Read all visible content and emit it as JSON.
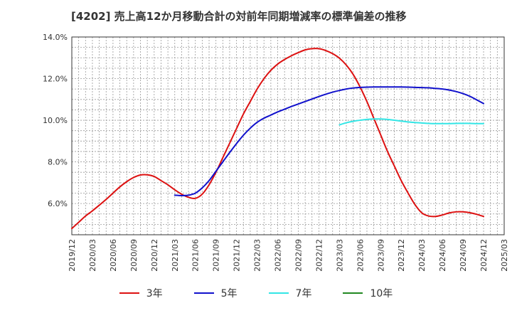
{
  "chart_data": {
    "type": "line",
    "title": "[4202]  売上高12か月移動合計の対前年同期増減率の標準偏差の推移",
    "xlabel": "",
    "ylabel": "",
    "ylim": [
      4.5,
      14.0
    ],
    "y_ticks": [
      6.0,
      8.0,
      10.0,
      12.0,
      14.0
    ],
    "y_tick_labels": [
      "6.0%",
      "8.0%",
      "10.0%",
      "12.0%",
      "14.0%"
    ],
    "x_range": [
      "2019-12",
      "2025-03"
    ],
    "x_tick_labels": [
      "2019/12",
      "2020/03",
      "2020/06",
      "2020/09",
      "2020/12",
      "2021/03",
      "2021/06",
      "2021/09",
      "2021/12",
      "2022/03",
      "2022/06",
      "2022/09",
      "2022/12",
      "2023/03",
      "2023/06",
      "2023/09",
      "2023/12",
      "2024/03",
      "2024/06",
      "2024/09",
      "2024/12",
      "2025/03"
    ],
    "grid": true,
    "legend_position": "bottom",
    "series": [
      {
        "name": "3年",
        "color": "#dd1111",
        "points": [
          [
            "2019-12",
            4.8
          ],
          [
            "2020-01",
            5.1
          ],
          [
            "2020-02",
            5.4
          ],
          [
            "2020-03",
            5.65
          ],
          [
            "2020-04",
            5.92
          ],
          [
            "2020-05",
            6.2
          ],
          [
            "2020-06",
            6.5
          ],
          [
            "2020-07",
            6.8
          ],
          [
            "2020-08",
            7.05
          ],
          [
            "2020-09",
            7.25
          ],
          [
            "2020-10",
            7.37
          ],
          [
            "2020-11",
            7.38
          ],
          [
            "2020-12",
            7.3
          ],
          [
            "2021-01",
            7.1
          ],
          [
            "2021-02",
            6.9
          ],
          [
            "2021-03",
            6.66
          ],
          [
            "2021-04",
            6.45
          ],
          [
            "2021-05",
            6.3
          ],
          [
            "2021-06",
            6.25
          ],
          [
            "2021-07",
            6.45
          ],
          [
            "2021-08",
            6.9
          ],
          [
            "2021-09",
            7.5
          ],
          [
            "2021-10",
            8.2
          ],
          [
            "2021-11",
            8.9
          ],
          [
            "2021-12",
            9.6
          ],
          [
            "2022-01",
            10.3
          ],
          [
            "2022-02",
            10.9
          ],
          [
            "2022-03",
            11.5
          ],
          [
            "2022-04",
            12.0
          ],
          [
            "2022-05",
            12.4
          ],
          [
            "2022-06",
            12.7
          ],
          [
            "2022-07",
            12.92
          ],
          [
            "2022-08",
            13.1
          ],
          [
            "2022-09",
            13.25
          ],
          [
            "2022-10",
            13.38
          ],
          [
            "2022-11",
            13.44
          ],
          [
            "2022-12",
            13.44
          ],
          [
            "2023-01",
            13.35
          ],
          [
            "2023-02",
            13.2
          ],
          [
            "2023-03",
            12.98
          ],
          [
            "2023-04",
            12.65
          ],
          [
            "2023-05",
            12.2
          ],
          [
            "2023-06",
            11.6
          ],
          [
            "2023-07",
            10.9
          ],
          [
            "2023-08",
            10.1
          ],
          [
            "2023-09",
            9.3
          ],
          [
            "2023-10",
            8.5
          ],
          [
            "2023-11",
            7.8
          ],
          [
            "2023-12",
            7.1
          ],
          [
            "2024-01",
            6.5
          ],
          [
            "2024-02",
            5.95
          ],
          [
            "2024-03",
            5.55
          ],
          [
            "2024-04",
            5.4
          ],
          [
            "2024-05",
            5.38
          ],
          [
            "2024-06",
            5.45
          ],
          [
            "2024-07",
            5.55
          ],
          [
            "2024-08",
            5.6
          ],
          [
            "2024-09",
            5.6
          ],
          [
            "2024-10",
            5.56
          ],
          [
            "2024-11",
            5.48
          ],
          [
            "2024-12",
            5.38
          ]
        ]
      },
      {
        "name": "5年",
        "color": "#1111cc",
        "points": [
          [
            "2021-03",
            6.4
          ],
          [
            "2021-04",
            6.38
          ],
          [
            "2021-05",
            6.4
          ],
          [
            "2021-06",
            6.5
          ],
          [
            "2021-07",
            6.75
          ],
          [
            "2021-08",
            7.1
          ],
          [
            "2021-09",
            7.55
          ],
          [
            "2021-10",
            8.0
          ],
          [
            "2021-11",
            8.45
          ],
          [
            "2021-12",
            8.88
          ],
          [
            "2022-01",
            9.28
          ],
          [
            "2022-02",
            9.62
          ],
          [
            "2022-03",
            9.9
          ],
          [
            "2022-04",
            10.1
          ],
          [
            "2022-05",
            10.25
          ],
          [
            "2022-06",
            10.4
          ],
          [
            "2022-07",
            10.53
          ],
          [
            "2022-08",
            10.66
          ],
          [
            "2022-09",
            10.78
          ],
          [
            "2022-10",
            10.9
          ],
          [
            "2022-11",
            11.02
          ],
          [
            "2022-12",
            11.14
          ],
          [
            "2023-01",
            11.25
          ],
          [
            "2023-02",
            11.35
          ],
          [
            "2023-03",
            11.43
          ],
          [
            "2023-04",
            11.5
          ],
          [
            "2023-05",
            11.55
          ],
          [
            "2023-06",
            11.58
          ],
          [
            "2023-07",
            11.59
          ],
          [
            "2023-08",
            11.6
          ],
          [
            "2023-09",
            11.6
          ],
          [
            "2023-10",
            11.6
          ],
          [
            "2023-11",
            11.6
          ],
          [
            "2023-12",
            11.6
          ],
          [
            "2024-01",
            11.59
          ],
          [
            "2024-02",
            11.58
          ],
          [
            "2024-03",
            11.57
          ],
          [
            "2024-04",
            11.56
          ],
          [
            "2024-05",
            11.53
          ],
          [
            "2024-06",
            11.5
          ],
          [
            "2024-07",
            11.45
          ],
          [
            "2024-08",
            11.38
          ],
          [
            "2024-09",
            11.28
          ],
          [
            "2024-10",
            11.15
          ],
          [
            "2024-11",
            10.98
          ],
          [
            "2024-12",
            10.8
          ]
        ]
      },
      {
        "name": "7年",
        "color": "#33e6e6",
        "points": [
          [
            "2023-03",
            9.78
          ],
          [
            "2023-04",
            9.88
          ],
          [
            "2023-05",
            9.95
          ],
          [
            "2023-06",
            10.0
          ],
          [
            "2023-07",
            10.04
          ],
          [
            "2023-08",
            10.06
          ],
          [
            "2023-09",
            10.06
          ],
          [
            "2023-10",
            10.04
          ],
          [
            "2023-11",
            10.0
          ],
          [
            "2023-12",
            9.96
          ],
          [
            "2024-01",
            9.92
          ],
          [
            "2024-02",
            9.89
          ],
          [
            "2024-03",
            9.87
          ],
          [
            "2024-04",
            9.85
          ],
          [
            "2024-05",
            9.84
          ],
          [
            "2024-06",
            9.84
          ],
          [
            "2024-07",
            9.84
          ],
          [
            "2024-08",
            9.85
          ],
          [
            "2024-09",
            9.85
          ],
          [
            "2024-10",
            9.85
          ],
          [
            "2024-11",
            9.84
          ],
          [
            "2024-12",
            9.84
          ]
        ]
      },
      {
        "name": "10年",
        "color": "#228822",
        "points": []
      }
    ]
  }
}
